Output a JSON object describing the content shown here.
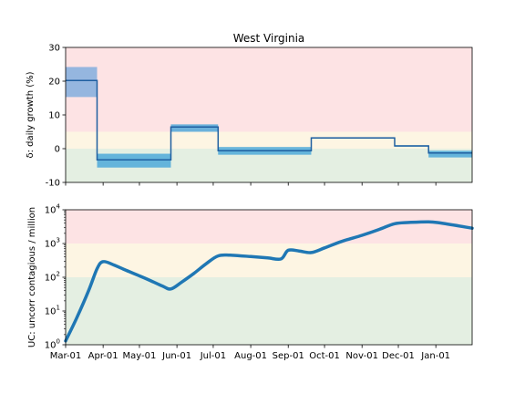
{
  "chart_data": [
    {
      "type": "line",
      "title": "West Virginia",
      "ylabel": "δ: daily growth (%)",
      "ylim": [
        -10,
        30
      ],
      "yticks": [
        -10,
        0,
        10,
        20,
        30
      ],
      "xlim": [
        "2020-03-01",
        "2021-01-31"
      ],
      "xticks": [
        {
          "date": "2020-03-01",
          "label": "Mar-01"
        },
        {
          "date": "2020-04-01",
          "label": "Apr-01"
        },
        {
          "date": "2020-05-01",
          "label": "May-01"
        },
        {
          "date": "2020-06-01",
          "label": "Jun-01"
        },
        {
          "date": "2020-07-01",
          "label": "Jul-01"
        },
        {
          "date": "2020-08-01",
          "label": "Aug-01"
        },
        {
          "date": "2020-09-01",
          "label": "Sep-01"
        },
        {
          "date": "2020-10-01",
          "label": "Oct-01"
        },
        {
          "date": "2020-11-01",
          "label": "Nov-01"
        },
        {
          "date": "2020-12-01",
          "label": "Dec-01"
        },
        {
          "date": "2021-01-01",
          "label": "Jan-01"
        }
      ],
      "background_bands": [
        {
          "from": 5,
          "to": 30,
          "color": "#fde3e4"
        },
        {
          "from": 0,
          "to": 5,
          "color": "#fdf5e3"
        },
        {
          "from": -10,
          "to": 0,
          "color": "#e4efe2"
        }
      ],
      "segments": [
        {
          "start": "2020-03-01",
          "end": "2020-03-27",
          "value": 20.2,
          "low": 15.3,
          "high": 24.2
        },
        {
          "start": "2020-03-27",
          "end": "2020-05-27",
          "value": -3.3,
          "low": -5.6,
          "high": -1.5
        },
        {
          "start": "2020-05-27",
          "end": "2020-07-05",
          "value": 6.4,
          "low": 5.0,
          "high": 7.2
        },
        {
          "start": "2020-07-05",
          "end": "2020-09-20",
          "value": -0.6,
          "low": -1.8,
          "high": 0.5
        },
        {
          "start": "2020-09-20",
          "end": "2020-11-28",
          "value": 3.2,
          "low": 3.0,
          "high": 3.4
        },
        {
          "start": "2020-11-28",
          "end": "2020-12-26",
          "value": 0.8,
          "low": 0.6,
          "high": 1.0
        },
        {
          "start": "2020-12-26",
          "end": "2021-01-31",
          "value": -1.3,
          "low": -2.6,
          "high": -0.6
        }
      ],
      "colors": {
        "line": "#1f5fa0",
        "band": "#3aa0d8"
      },
      "grid": false
    },
    {
      "type": "line",
      "ylabel": "UC: uncorr contagious / million",
      "yscale": "log",
      "ylim": [
        1,
        10000
      ],
      "yticks": [
        {
          "value": 1,
          "base": "10",
          "exp": "0"
        },
        {
          "value": 10,
          "base": "10",
          "exp": "1"
        },
        {
          "value": 100,
          "base": "10",
          "exp": "2"
        },
        {
          "value": 1000,
          "base": "10",
          "exp": "3"
        },
        {
          "value": 10000,
          "base": "10",
          "exp": "4"
        }
      ],
      "xlim": [
        "2020-03-01",
        "2021-01-31"
      ],
      "background_bands": [
        {
          "from": 1000,
          "to": 10000,
          "color": "#fde3e4"
        },
        {
          "from": 100,
          "to": 1000,
          "color": "#fdf5e3"
        },
        {
          "from": 1,
          "to": 100,
          "color": "#e4efe2"
        }
      ],
      "series": [
        {
          "x": [
            "2020-03-01",
            "2020-03-10",
            "2020-03-20",
            "2020-03-27",
            "2020-04-01",
            "2020-04-10",
            "2020-04-20",
            "2020-05-01",
            "2020-05-10",
            "2020-05-20",
            "2020-05-27",
            "2020-06-05",
            "2020-06-15",
            "2020-06-25",
            "2020-07-05",
            "2020-07-15",
            "2020-08-01",
            "2020-08-15",
            "2020-08-26",
            "2020-09-01",
            "2020-09-10",
            "2020-09-20",
            "2020-10-01",
            "2020-10-15",
            "2020-11-01",
            "2020-11-15",
            "2020-11-28",
            "2020-12-10",
            "2020-12-26",
            "2021-01-05",
            "2021-01-31"
          ],
          "y": [
            1.3,
            6,
            40,
            180,
            290,
            230,
            160,
            110,
            80,
            55,
            45,
            72,
            130,
            250,
            430,
            450,
            410,
            375,
            350,
            630,
            600,
            540,
            740,
            1150,
            1750,
            2600,
            3850,
            4200,
            4400,
            4050,
            2850
          ]
        }
      ],
      "colors": {
        "line": "#1f77b4"
      },
      "grid": false
    }
  ]
}
